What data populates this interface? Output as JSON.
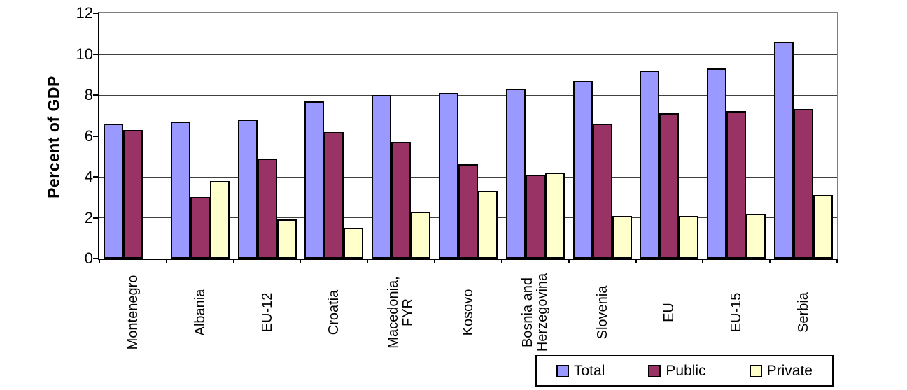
{
  "chart_data": {
    "type": "bar",
    "title": "",
    "xlabel": "",
    "ylabel": "Percent of GDP",
    "ylim": [
      0,
      12
    ],
    "yticks": [
      0,
      2,
      4,
      6,
      8,
      10,
      12
    ],
    "grid": true,
    "legend_position": "bottom-right",
    "plot_background": "#ffffff",
    "categories": [
      "Montenegro",
      "Albania",
      "EU-12",
      "Croatia",
      "Macedonia,\nFYR",
      "Kosovo",
      "Bosnia and\nHerzegovina",
      "Slovenia",
      "EU",
      "EU-15",
      "Serbia"
    ],
    "series": [
      {
        "name": "Total",
        "color": "#9999FF",
        "values": [
          6.6,
          6.7,
          6.8,
          7.7,
          8.0,
          8.1,
          8.3,
          8.7,
          9.2,
          9.3,
          10.6
        ]
      },
      {
        "name": "Public",
        "color": "#993366",
        "values": [
          6.3,
          3.0,
          4.9,
          6.2,
          5.7,
          4.6,
          4.1,
          6.6,
          7.1,
          7.2,
          7.3
        ]
      },
      {
        "name": "Private",
        "color": "#FFFFCC",
        "values": [
          null,
          3.8,
          1.9,
          1.5,
          2.3,
          3.3,
          4.2,
          2.1,
          2.1,
          2.2,
          3.1
        ]
      }
    ],
    "style_colors": {
      "axis": "#000000",
      "gridline": "#404040",
      "plot_border": "#808080",
      "bar_border": "#000000"
    }
  }
}
